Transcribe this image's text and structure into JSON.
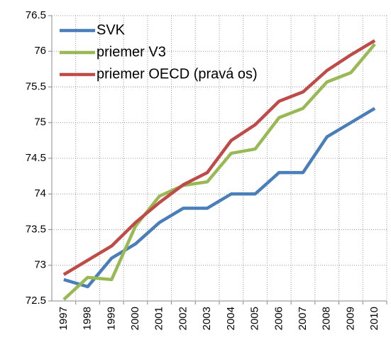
{
  "chart_data": {
    "type": "line",
    "categories": [
      "1997",
      "1998",
      "1999",
      "2000",
      "2001",
      "2002",
      "2003",
      "2004",
      "2005",
      "2006",
      "2007",
      "2008",
      "2009",
      "2010"
    ],
    "series": [
      {
        "name": "SVK",
        "color": "#4a7ebb",
        "values": [
          72.8,
          72.7,
          73.1,
          73.3,
          73.6,
          73.8,
          73.8,
          74.0,
          74.0,
          74.3,
          74.3,
          74.8,
          75.0,
          75.2
        ]
      },
      {
        "name": "priemer V3",
        "color": "#98b954",
        "values": [
          72.52,
          72.83,
          72.8,
          73.55,
          73.97,
          74.12,
          74.17,
          74.57,
          74.63,
          75.07,
          75.2,
          75.57,
          75.7,
          76.1
        ]
      },
      {
        "name": "priemer OECD (pravá os)",
        "color": "#be4b48",
        "values": [
          72.87,
          73.07,
          73.27,
          73.6,
          73.88,
          74.13,
          74.3,
          74.75,
          74.97,
          75.3,
          75.43,
          75.73,
          75.95,
          76.15
        ]
      }
    ],
    "ylim": [
      72.5,
      76.5
    ],
    "yticks": [
      72.5,
      73,
      73.5,
      74,
      74.5,
      75,
      75.5,
      76,
      76.5
    ],
    "grid": true,
    "legend": "top-left"
  }
}
